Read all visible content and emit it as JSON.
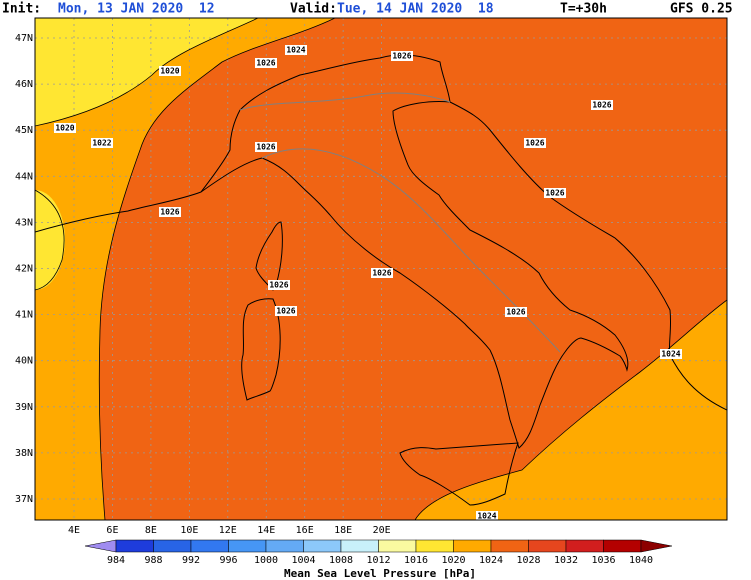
{
  "header": {
    "init_label": "Init:",
    "init_time": "Mon, 13 JAN 2020  12",
    "valid_label": "Valid:",
    "valid_time": "Tue, 14 JAN 2020  18",
    "lead": "T=+30h",
    "model": "GFS 0.25"
  },
  "lat_labels": [
    "47N",
    "46N",
    "45N",
    "44N",
    "43N",
    "42N",
    "41N",
    "40N",
    "39N",
    "38N",
    "37N"
  ],
  "lon_labels": [
    "4E",
    "6E",
    "8E",
    "10E",
    "12E",
    "14E",
    "16E",
    "18E",
    "20E"
  ],
  "contour_labels": [
    1024,
    1026,
    1020,
    1026,
    1020,
    1022,
    1026,
    1026,
    1026,
    1026,
    1026,
    1026,
    1026,
    1026,
    1026,
    1024,
    1024
  ],
  "colorbar": {
    "title": "Mean Sea Level Pressure [hPa]",
    "labels": [
      984,
      988,
      992,
      996,
      1000,
      1004,
      1008,
      1012,
      1016,
      1020,
      1024,
      1028,
      1032,
      1036,
      1040
    ],
    "colors": [
      "#a08cf0",
      "#1e3cdc",
      "#2864e6",
      "#3278f0",
      "#4696f5",
      "#64aaf5",
      "#8cc8fa",
      "#c8f0fa",
      "#fafaa0",
      "#ffe632",
      "#ffaa00",
      "#f06414",
      "#e6461e",
      "#d21e1e",
      "#b40000",
      "#8c0000"
    ]
  }
}
